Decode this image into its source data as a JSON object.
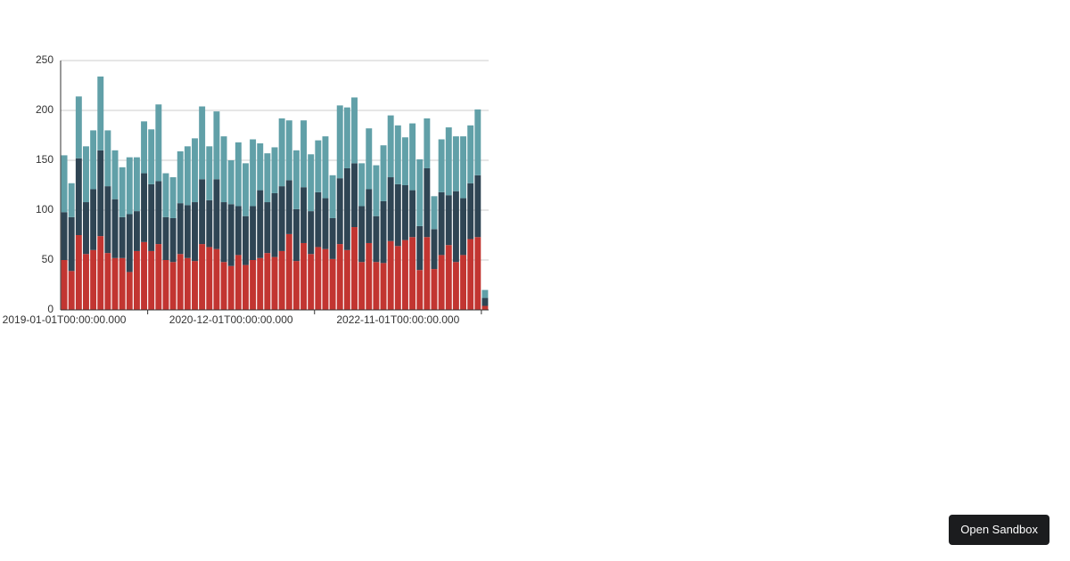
{
  "chart_data": {
    "type": "stacked_bar",
    "categories": [
      "2019-01-01T00:00:00.000",
      null,
      null,
      null,
      null,
      null,
      null,
      null,
      null,
      null,
      null,
      null,
      null,
      null,
      null,
      null,
      null,
      null,
      null,
      null,
      null,
      null,
      null,
      "2020-12-01T00:00:00.000",
      null,
      null,
      null,
      null,
      null,
      null,
      null,
      null,
      null,
      null,
      null,
      null,
      null,
      null,
      null,
      null,
      null,
      null,
      null,
      null,
      null,
      null,
      "2022-11-01T00:00:00.000",
      null,
      null,
      null,
      null,
      null,
      null,
      null,
      null,
      null,
      null,
      null,
      null
    ],
    "series": [
      {
        "color": "#c23531",
        "values": [
          50,
          39,
          75,
          56,
          60,
          74,
          57,
          52,
          52,
          38,
          59,
          68,
          59,
          66,
          50,
          48,
          56,
          52,
          49,
          66,
          63,
          61,
          48,
          44,
          55,
          45,
          50,
          52,
          57,
          53,
          59,
          76,
          49,
          67,
          56,
          63,
          61,
          51,
          66,
          60,
          83,
          48,
          67,
          48,
          47,
          69,
          64,
          70,
          73,
          40,
          73,
          41,
          55,
          65,
          48,
          55,
          71,
          73,
          4
        ]
      },
      {
        "color": "#2f4554",
        "values": [
          48,
          54,
          77,
          52,
          61,
          86,
          67,
          59,
          41,
          58,
          40,
          69,
          67,
          63,
          43,
          44,
          51,
          53,
          59,
          65,
          47,
          70,
          60,
          62,
          49,
          49,
          54,
          68,
          51,
          64,
          65,
          54,
          52,
          56,
          43,
          55,
          51,
          41,
          66,
          82,
          64,
          56,
          54,
          46,
          62,
          64,
          62,
          55,
          47,
          44,
          69,
          40,
          63,
          50,
          71,
          57,
          56,
          62,
          8
        ]
      },
      {
        "color": "#61a0a8",
        "values": [
          57,
          34,
          62,
          56,
          59,
          74,
          56,
          49,
          50,
          57,
          54,
          52,
          55,
          77,
          44,
          41,
          52,
          59,
          64,
          73,
          54,
          68,
          66,
          44,
          64,
          53,
          67,
          47,
          49,
          46,
          68,
          60,
          59,
          67,
          57,
          52,
          62,
          43,
          73,
          61,
          66,
          43,
          61,
          51,
          56,
          62,
          59,
          48,
          67,
          67,
          50,
          33,
          53,
          68,
          55,
          62,
          58,
          66,
          8
        ]
      }
    ],
    "ylim": [
      0,
      250
    ],
    "yticks": [
      0,
      50,
      100,
      150,
      200,
      250
    ],
    "grid": true
  },
  "button": "Open Sandbox"
}
